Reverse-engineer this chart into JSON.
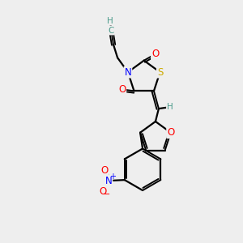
{
  "bg_color": "#eeeeee",
  "atom_colors": {
    "C": "#000000",
    "H": "#4a9a8a",
    "N": "#0000ff",
    "O": "#ff0000",
    "S": "#ccaa00"
  },
  "bond_color": "#000000",
  "figsize": [
    3.0,
    3.0
  ],
  "dpi": 100
}
